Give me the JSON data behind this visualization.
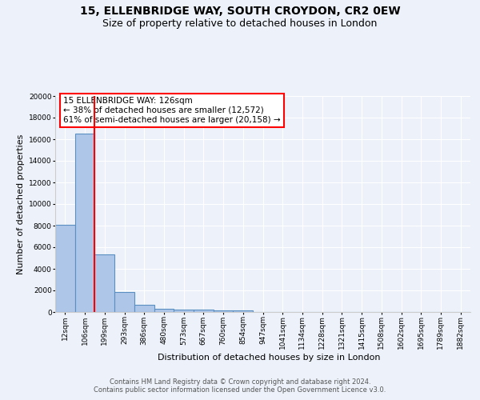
{
  "title1": "15, ELLENBRIDGE WAY, SOUTH CROYDON, CR2 0EW",
  "title2": "Size of property relative to detached houses in London",
  "xlabel": "Distribution of detached houses by size in London",
  "ylabel": "Number of detached properties",
  "categories": [
    "12sqm",
    "106sqm",
    "199sqm",
    "293sqm",
    "386sqm",
    "480sqm",
    "573sqm",
    "667sqm",
    "760sqm",
    "854sqm",
    "947sqm",
    "1041sqm",
    "1134sqm",
    "1228sqm",
    "1321sqm",
    "1415sqm",
    "1508sqm",
    "1602sqm",
    "1695sqm",
    "1789sqm",
    "1882sqm"
  ],
  "values": [
    8100,
    16500,
    5300,
    1850,
    700,
    310,
    240,
    200,
    170,
    150,
    0,
    0,
    0,
    0,
    0,
    0,
    0,
    0,
    0,
    0,
    0
  ],
  "bar_color": "#aec6e8",
  "bar_edge_color": "#5a8fc2",
  "annotation_box_text": "15 ELLENBRIDGE WAY: 126sqm\n← 38% of detached houses are smaller (12,572)\n61% of semi-detached houses are larger (20,158) →",
  "annotation_box_color": "white",
  "annotation_box_edge_color": "red",
  "vline_x": 1.5,
  "ylim": [
    0,
    20000
  ],
  "yticks": [
    0,
    2000,
    4000,
    6000,
    8000,
    10000,
    12000,
    14000,
    16000,
    18000,
    20000
  ],
  "footer1": "Contains HM Land Registry data © Crown copyright and database right 2024.",
  "footer2": "Contains public sector information licensed under the Open Government Licence v3.0.",
  "bg_color": "#edf2fa",
  "plot_bg_color": "#edf2fa",
  "grid_color": "#ffffff",
  "title1_fontsize": 10,
  "title2_fontsize": 9,
  "tick_fontsize": 6.5,
  "ylabel_fontsize": 8,
  "xlabel_fontsize": 8,
  "footer_fontsize": 6,
  "annot_fontsize": 7.5
}
